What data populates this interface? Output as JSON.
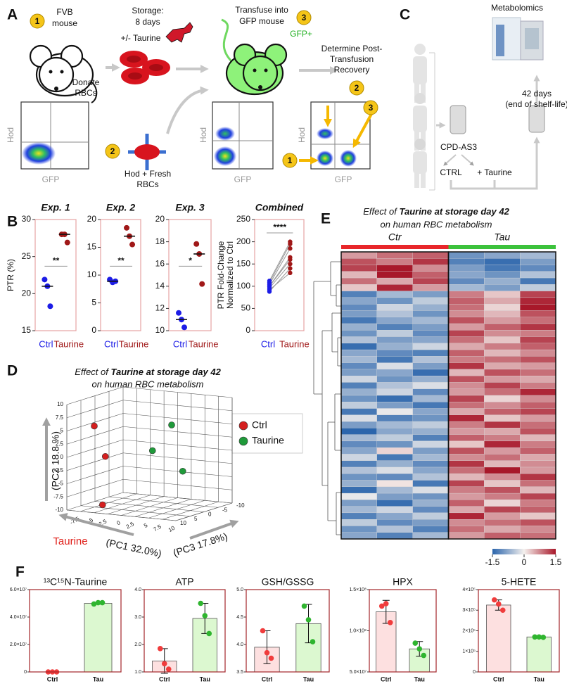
{
  "panel_labels": [
    "A",
    "B",
    "C",
    "D",
    "E",
    "F"
  ],
  "panel_a": {
    "fvb": [
      "FVB",
      "mouse"
    ],
    "storage": [
      "Storage:",
      "8 days",
      "+/- Taurine"
    ],
    "donate": [
      "Donate",
      "RBCs"
    ],
    "transfuse": [
      "Transfuse into",
      "GFP mouse"
    ],
    "gfp_plus": "GFP+",
    "determine": [
      "Determine Post-",
      "Transfusion",
      "Recovery"
    ],
    "hod_fresh": [
      "Hod + Fresh",
      "RBCs"
    ],
    "badges": [
      "1",
      "3",
      "2",
      "2",
      "3",
      "1"
    ],
    "axis_x": "GFP",
    "axis_y": "Hod"
  },
  "panel_c": {
    "metabolomics": "Metabolomics",
    "shelf": [
      "42 days",
      "(end of shelf-life)"
    ],
    "bag": "CPD-AS3",
    "ctrl": "CTRL",
    "taurine": "+ Taurine"
  },
  "chart_data": [
    {
      "type": "strip",
      "title": "Exp. 1",
      "ylabel": [
        "PTR (%)"
      ],
      "significance": "**",
      "ylim": [
        15,
        30
      ],
      "yticks": [
        15,
        20,
        25,
        30
      ],
      "series": [
        {
          "name": "Ctrl",
          "color": "#1c1ce6",
          "values": [
            21.9,
            21,
            18.3
          ],
          "median": 21
        },
        {
          "name": "Taurine",
          "color": "#a01818",
          "values": [
            28,
            28,
            26.9
          ],
          "median": 28
        }
      ]
    },
    {
      "type": "strip",
      "title": "Exp. 2",
      "significance": "**",
      "ylim": [
        0,
        20
      ],
      "yticks": [
        0,
        5,
        10,
        15,
        20
      ],
      "series": [
        {
          "name": "Ctrl",
          "color": "#1c1ce6",
          "values": [
            9.2,
            8.7,
            8.9
          ],
          "median": 8.9
        },
        {
          "name": "Taurine",
          "color": "#a01818",
          "values": [
            18.5,
            17,
            15.5
          ],
          "median": 17
        }
      ]
    },
    {
      "type": "strip",
      "title": "Exp. 3",
      "significance": "*",
      "ylim": [
        10,
        20
      ],
      "yticks": [
        10,
        12,
        14,
        16,
        18,
        20
      ],
      "series": [
        {
          "name": "Ctrl",
          "color": "#1c1ce6",
          "values": [
            11.6,
            11,
            10.3
          ],
          "median": 11
        },
        {
          "name": "Taurine",
          "color": "#a01818",
          "values": [
            17.8,
            16.9,
            14.2
          ],
          "median": 16.9
        }
      ]
    },
    {
      "type": "paired",
      "title": "Combined",
      "ylabel": [
        "PTR Fold-Change",
        "Normalized to Ctrl"
      ],
      "significance": "****",
      "ylim": [
        0,
        250
      ],
      "yticks": [
        0,
        50,
        100,
        150,
        200,
        250
      ],
      "series": [
        {
          "name": "Ctrl",
          "color": "#1c1ce6",
          "values": [
            88,
            92,
            96,
            100,
            104,
            108,
            112,
            100
          ]
        },
        {
          "name": "Taurine",
          "color": "#a01818",
          "values": [
            140,
            130,
            150,
            165,
            185,
            195,
            200,
            160
          ]
        }
      ]
    },
    {
      "type": "scatter3d",
      "title": [
        "Effect of ",
        "Taurine at storage day 42"
      ],
      "subtitle": "on human RBC metabolism",
      "xlabel": "(PC1 32.0%)",
      "ylabel": "(PC2  18.8 %)",
      "zlabel": "(PC3 17.8%)",
      "annotation": "Taurine",
      "xlim": [
        -10,
        10
      ],
      "ylim": [
        -10,
        10
      ],
      "zlim": [
        -10,
        10
      ],
      "xticks": [
        -10,
        -5,
        0,
        5,
        10
      ],
      "yticks": [
        -10,
        -7.5,
        -5,
        -2.5,
        0,
        2.5,
        5,
        7.5,
        10
      ],
      "zticks": [
        -7.5,
        -5,
        -2.5,
        0,
        2.5,
        5,
        7.5,
        10
      ],
      "series": [
        {
          "name": "Ctrl",
          "color": "#d42020",
          "x": [
            8,
            6,
            7
          ],
          "y": [
            6,
            0,
            -9
          ],
          "z": [
            -6,
            -5,
            -5
          ]
        },
        {
          "name": "Taurine",
          "color": "#1f9a3a",
          "x": [
            -4,
            -3,
            -6
          ],
          "y": [
            5,
            0,
            -4
          ],
          "z": [
            2,
            -1,
            3
          ]
        }
      ]
    },
    {
      "type": "heatmap",
      "title": [
        "Effect of ",
        "Taurine at storage day 42"
      ],
      "subtitle": "on human RBC metabolism",
      "groups": [
        {
          "name": "Ctr",
          "color": "#e8262a"
        },
        {
          "name": "Tau",
          "color": "#3cc23c"
        }
      ],
      "colors": [
        "#2b65ac",
        "#f5f1ee",
        "#a8182a"
      ],
      "clim": [
        -1.5,
        1.5
      ],
      "cticks": [
        -1.5,
        0,
        1.5
      ],
      "values": [
        [
          0.6,
          0.9,
          1.0,
          -1.0,
          -0.8,
          -0.6
        ],
        [
          1.1,
          0.8,
          1.3,
          -1.2,
          -1.4,
          -0.9
        ],
        [
          1.2,
          1.5,
          0.7,
          -0.9,
          -1.3,
          -1.1
        ],
        [
          0.4,
          1.6,
          1.0,
          -0.8,
          -1.0,
          -0.5
        ],
        [
          0.9,
          0.5,
          1.2,
          -1.1,
          -0.7,
          -1.3
        ],
        [
          0.3,
          1.4,
          0.6,
          -0.6,
          -0.9,
          -0.4
        ],
        [
          -1.2,
          -0.6,
          -0.9,
          0.8,
          0.3,
          1.2
        ],
        [
          -0.8,
          -1.0,
          -0.4,
          1.0,
          0.5,
          1.4
        ],
        [
          -1.1,
          -0.3,
          -0.7,
          0.9,
          0.2,
          1.5
        ],
        [
          -0.9,
          -0.5,
          -1.0,
          0.7,
          0.4,
          1.1
        ],
        [
          -1.3,
          -0.8,
          -0.6,
          1.1,
          0.6,
          0.9
        ],
        [
          -0.7,
          -1.2,
          -0.9,
          0.6,
          1.0,
          1.3
        ],
        [
          -1.0,
          -0.4,
          -1.1,
          1.2,
          0.7,
          0.8
        ],
        [
          -0.5,
          -0.9,
          -0.8,
          0.9,
          0.3,
          1.2
        ],
        [
          -1.4,
          -0.7,
          -0.3,
          0.5,
          0.8,
          1.0
        ],
        [
          -0.8,
          -1.1,
          -1.2,
          1.0,
          0.4,
          0.7
        ],
        [
          -0.6,
          -1.3,
          -0.5,
          0.8,
          0.9,
          1.1
        ],
        [
          -1.1,
          -0.2,
          -0.9,
          1.3,
          0.5,
          0.6
        ],
        [
          -0.9,
          -0.8,
          -1.4,
          0.4,
          1.1,
          0.9
        ],
        [
          -0.3,
          -1.0,
          -0.7,
          1.1,
          0.6,
          0.5
        ],
        [
          -1.2,
          -0.5,
          -0.2,
          0.7,
          1.2,
          0.8
        ],
        [
          -0.7,
          -0.3,
          -1.1,
          0.6,
          0.9,
          1.4
        ],
        [
          -1.0,
          -1.4,
          -0.6,
          1.2,
          0.2,
          0.7
        ],
        [
          -0.4,
          -0.9,
          -1.3,
          0.9,
          0.7,
          1.0
        ],
        [
          -1.3,
          -0.1,
          -0.8,
          0.5,
          1.0,
          1.2
        ],
        [
          -0.2,
          -1.2,
          -1.0,
          1.4,
          0.3,
          0.6
        ],
        [
          -0.9,
          -0.6,
          -0.4,
          0.8,
          1.3,
          0.9
        ],
        [
          -1.5,
          -0.8,
          -0.7,
          0.6,
          0.5,
          1.1
        ],
        [
          -0.6,
          -0.4,
          -1.2,
          1.0,
          0.8,
          0.4
        ],
        [
          -1.1,
          -1.0,
          -0.3,
          0.3,
          1.4,
          0.8
        ],
        [
          -0.8,
          0.2,
          -0.9,
          1.1,
          0.6,
          1.0
        ],
        [
          -0.3,
          -1.3,
          -0.6,
          0.7,
          0.9,
          0.5
        ],
        [
          -1.2,
          -0.7,
          -1.1,
          1.3,
          0.4,
          0.7
        ],
        [
          -0.5,
          -0.2,
          -0.8,
          0.9,
          1.5,
          0.6
        ],
        [
          -1.0,
          -1.1,
          -0.5,
          0.4,
          0.7,
          1.3
        ],
        [
          -0.7,
          0.1,
          -1.3,
          1.2,
          0.3,
          0.9
        ],
        [
          -1.4,
          -0.6,
          -0.2,
          0.8,
          1.1,
          0.4
        ],
        [
          -0.1,
          -0.9,
          -1.0,
          0.6,
          0.8,
          1.2
        ],
        [
          -0.9,
          -1.4,
          -0.7,
          1.0,
          0.2,
          0.8
        ],
        [
          -0.6,
          -0.3,
          -1.1,
          0.5,
          1.2,
          1.0
        ],
        [
          -1.2,
          -0.8,
          -0.4,
          1.4,
          0.6,
          0.3
        ],
        [
          -0.4,
          -1.1,
          -0.9,
          0.7,
          0.9,
          1.1
        ],
        [
          -1.0,
          -0.5,
          -1.2,
          0.9,
          0.5,
          0.7
        ],
        [
          -0.8,
          -1.2,
          -0.6,
          0.6,
          1.0,
          0.9
        ]
      ]
    },
    {
      "type": "bar_dot",
      "title": "¹³C¹⁵N-Taurine",
      "categories": [
        "Ctrl",
        "Tau"
      ],
      "values": [
        0,
        50000000
      ],
      "errors": [
        0,
        600000
      ],
      "points": [
        [
          0,
          0,
          0
        ],
        [
          49500000,
          50500000,
          50500000
        ]
      ],
      "colors": [
        "#f03c3c",
        "#2fb52f"
      ],
      "fills": [
        "#fde0e0",
        "#dcf8d0"
      ],
      "ylim": [
        0,
        60000000
      ],
      "yticks": [
        0,
        {
          "value": 20000000,
          "label": "2.0×10⁷"
        },
        {
          "value": 40000000,
          "label": "4.0×10⁷"
        },
        {
          "value": 60000000,
          "label": "6.0×10⁷"
        }
      ]
    },
    {
      "type": "bar_dot",
      "title": "ATP",
      "categories": [
        "Ctrl",
        "Tau"
      ],
      "values": [
        1.4,
        2.95
      ],
      "errors": [
        0.45,
        0.55
      ],
      "points": [
        [
          1.85,
          1.3,
          1.1
        ],
        [
          3.5,
          3.05,
          2.4
        ]
      ],
      "colors": [
        "#f03c3c",
        "#2fb52f"
      ],
      "fills": [
        "#fde0e0",
        "#dcf8d0"
      ],
      "ylim": [
        1,
        4
      ],
      "yticks": [
        {
          "value": 1,
          "label": "1.0"
        },
        {
          "value": 2,
          "label": "2.0"
        },
        {
          "value": 3,
          "label": "3.0"
        },
        {
          "value": 4,
          "label": "4.0"
        }
      ]
    },
    {
      "type": "bar_dot",
      "title": "GSH/GSSG",
      "categories": [
        "Ctrl",
        "Tau"
      ],
      "values": [
        3.95,
        4.38
      ],
      "errors": [
        0.3,
        0.35
      ],
      "points": [
        [
          4.25,
          3.85,
          3.75
        ],
        [
          4.7,
          4.45,
          4.05
        ]
      ],
      "colors": [
        "#f03c3c",
        "#2fb52f"
      ],
      "fills": [
        "#fde0e0",
        "#dcf8d0"
      ],
      "ylim": [
        3.5,
        5
      ],
      "yticks": [
        3.5,
        {
          "value": 4,
          "label": "4.0"
        },
        4.5,
        {
          "value": 5,
          "label": "5.0"
        }
      ]
    },
    {
      "type": "bar_dot",
      "title": "HPX",
      "categories": [
        "Ctrl",
        "Tau"
      ],
      "values": [
        123000000,
        78000000
      ],
      "errors": [
        14000000,
        9000000
      ],
      "points": [
        [
          130000000,
          133000000,
          110000000
        ],
        [
          85000000,
          78000000,
          70000000
        ]
      ],
      "colors": [
        "#f03c3c",
        "#2fb52f"
      ],
      "fills": [
        "#fde0e0",
        "#dcf8d0"
      ],
      "ylim": [
        50000000,
        150000000
      ],
      "yticks": [
        {
          "value": 50000000,
          "label": "5.0×10⁷"
        },
        {
          "value": 100000000,
          "label": "1.0×10⁸"
        },
        {
          "value": 150000000,
          "label": "1.5×10⁸"
        }
      ]
    },
    {
      "type": "bar_dot",
      "title": "5-HETE",
      "categories": [
        "Ctrl",
        "Tau"
      ],
      "values": [
        325000,
        170000
      ],
      "errors": [
        25000,
        5000
      ],
      "points": [
        [
          350000,
          330000,
          300000
        ],
        [
          170000,
          170000,
          168000
        ]
      ],
      "colors": [
        "#f03c3c",
        "#2fb52f"
      ],
      "fills": [
        "#fde0e0",
        "#dcf8d0"
      ],
      "ylim": [
        0,
        400000
      ],
      "yticks": [
        0,
        {
          "value": 100000,
          "label": "1×10⁵"
        },
        {
          "value": 200000,
          "label": "2×10⁵"
        },
        {
          "value": 300000,
          "label": "3×10⁵"
        },
        {
          "value": 400000,
          "label": "4×10⁵"
        }
      ]
    }
  ]
}
